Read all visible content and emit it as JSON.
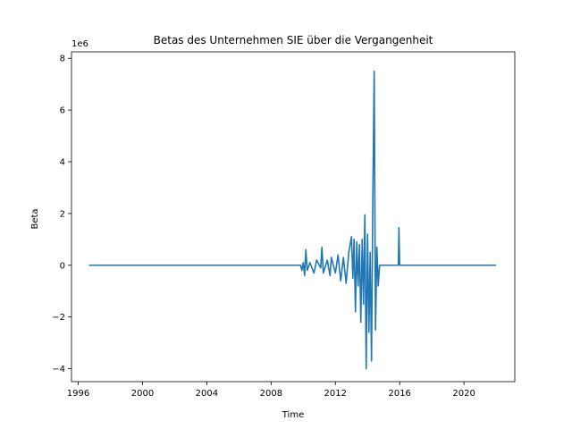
{
  "chart_data": {
    "type": "line",
    "title": "Betas des Unternehmen SIE über die Vergangenheit",
    "xlabel": "Time",
    "ylabel": "Beta",
    "y_offset_label": "1e6",
    "x_ticks": [
      "1996",
      "2000",
      "2004",
      "2008",
      "2012",
      "2016",
      "2020"
    ],
    "y_ticks": [
      "−4",
      "−2",
      "0",
      "2",
      "4",
      "6",
      "8"
    ],
    "xlim": [
      "1995-08-01",
      "2023-03-01"
    ],
    "ylim": [
      -4.5,
      8.25
    ],
    "y_scale_note": "values in units of 1e6",
    "grid": false,
    "series": [
      {
        "color": "#1f77b4",
        "points": [
          [
            "1996-09-01",
            0
          ],
          [
            "2009-11-01",
            0
          ],
          [
            "2009-12-01",
            -0.2
          ],
          [
            "2010-01-01",
            0.1
          ],
          [
            "2010-02-01",
            -0.4
          ],
          [
            "2010-03-01",
            0.6
          ],
          [
            "2010-04-01",
            -0.2
          ],
          [
            "2010-06-01",
            0.1
          ],
          [
            "2010-09-01",
            -0.3
          ],
          [
            "2010-11-01",
            0.2
          ],
          [
            "2011-02-01",
            -0.1
          ],
          [
            "2011-03-01",
            0.7
          ],
          [
            "2011-04-01",
            -0.3
          ],
          [
            "2011-07-01",
            0.2
          ],
          [
            "2011-09-01",
            -0.4
          ],
          [
            "2011-10-01",
            0.3
          ],
          [
            "2012-01-01",
            -0.3
          ],
          [
            "2012-03-01",
            0.4
          ],
          [
            "2012-05-01",
            -0.6
          ],
          [
            "2012-07-01",
            0.3
          ],
          [
            "2012-09-01",
            -0.7
          ],
          [
            "2012-11-01",
            0.5
          ],
          [
            "2013-01-01",
            1.1
          ],
          [
            "2013-02-01",
            -0.5
          ],
          [
            "2013-03-01",
            1.0
          ],
          [
            "2013-04-01",
            -1.8
          ],
          [
            "2013-05-01",
            0.9
          ],
          [
            "2013-06-01",
            -0.8
          ],
          [
            "2013-07-01",
            0.8
          ],
          [
            "2013-08-01",
            -2.2
          ],
          [
            "2013-09-01",
            1.0
          ],
          [
            "2013-10-01",
            -1.5
          ],
          [
            "2013-11-01",
            1.95
          ],
          [
            "2013-12-01",
            -4.0
          ],
          [
            "2014-01-01",
            1.2
          ],
          [
            "2014-02-01",
            -2.6
          ],
          [
            "2014-03-01",
            0.5
          ],
          [
            "2014-04-01",
            -3.7
          ],
          [
            "2014-05-01",
            2.5
          ],
          [
            "2014-06-01",
            7.5
          ],
          [
            "2014-07-01",
            -2.5
          ],
          [
            "2014-08-01",
            0.7
          ],
          [
            "2014-09-01",
            -0.8
          ],
          [
            "2014-10-01",
            0
          ],
          [
            "2015-06-01",
            0
          ],
          [
            "2015-12-01",
            0
          ],
          [
            "2015-12-15",
            1.45
          ],
          [
            "2016-01-01",
            0
          ],
          [
            "2022-01-01",
            0
          ]
        ]
      }
    ]
  }
}
